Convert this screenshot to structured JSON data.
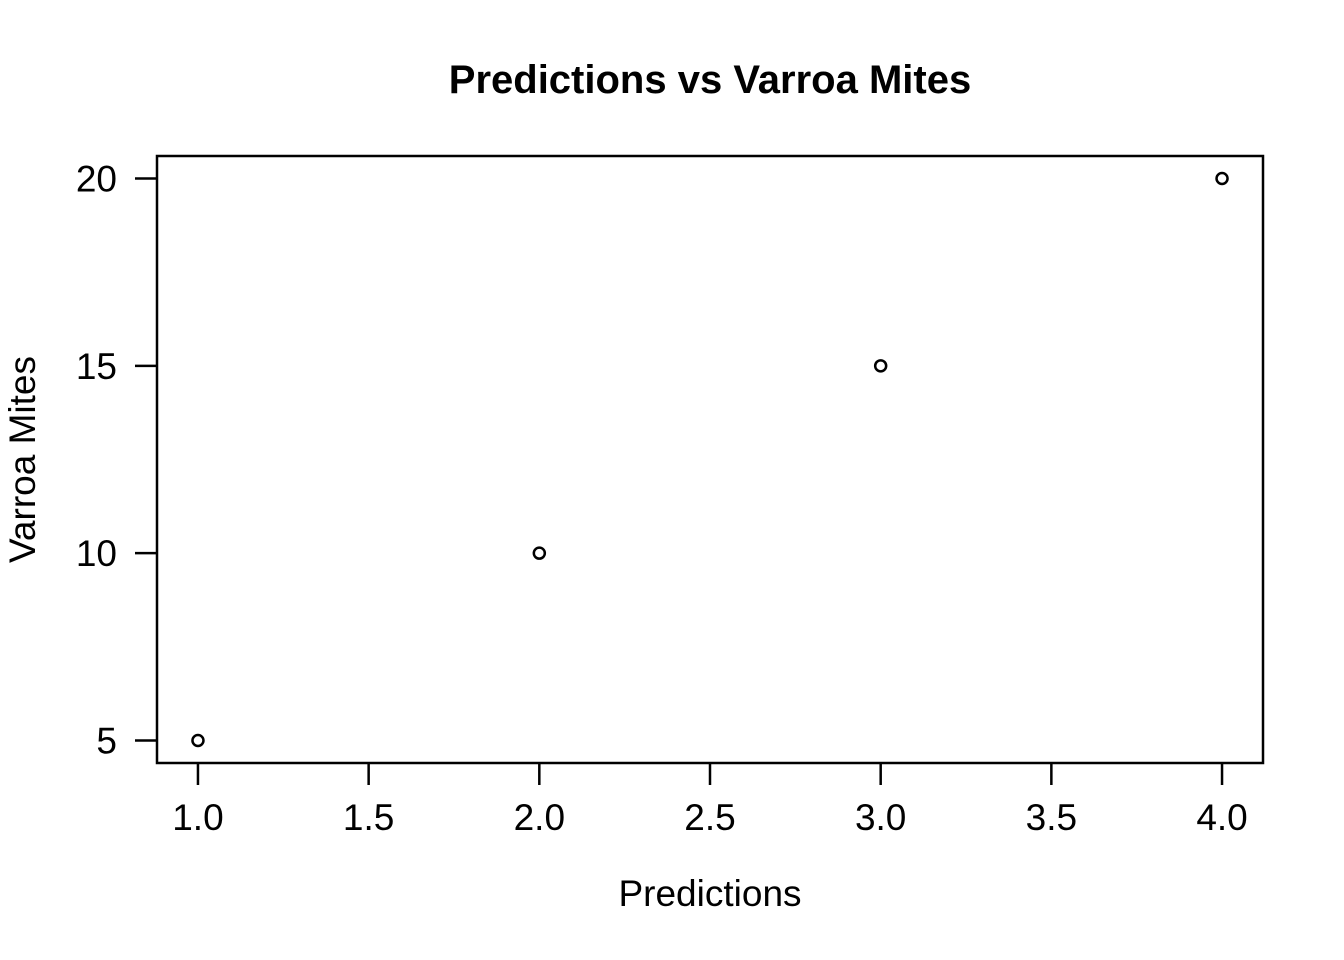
{
  "chart_data": {
    "type": "scatter",
    "title": "Predictions vs Varroa Mites",
    "xlabel": "Predictions",
    "ylabel": "Varroa Mites",
    "points": [
      {
        "x": 1,
        "y": 5
      },
      {
        "x": 2,
        "y": 10
      },
      {
        "x": 3,
        "y": 15
      },
      {
        "x": 4,
        "y": 20
      }
    ],
    "x_ticks": [
      {
        "value": 1.0,
        "label": "1.0"
      },
      {
        "value": 1.5,
        "label": "1.5"
      },
      {
        "value": 2.0,
        "label": "2.0"
      },
      {
        "value": 2.5,
        "label": "2.5"
      },
      {
        "value": 3.0,
        "label": "3.0"
      },
      {
        "value": 3.5,
        "label": "3.5"
      },
      {
        "value": 4.0,
        "label": "4.0"
      }
    ],
    "y_ticks": [
      {
        "value": 5,
        "label": "5"
      },
      {
        "value": 10,
        "label": "10"
      },
      {
        "value": 15,
        "label": "15"
      },
      {
        "value": 20,
        "label": "20"
      }
    ],
    "xlim": [
      1,
      4
    ],
    "ylim": [
      5,
      20
    ],
    "axis_expansion": 0.04,
    "grid": false,
    "legend": "none",
    "marker": "open-circle",
    "colors": {
      "foreground": "#000000",
      "background": "#FFFFFF"
    }
  }
}
